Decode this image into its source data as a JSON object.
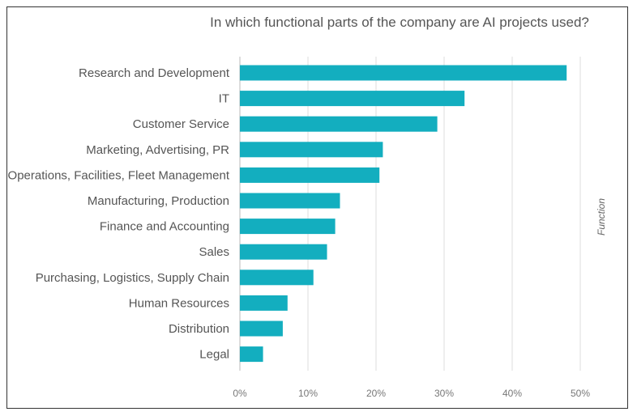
{
  "chart_data": {
    "type": "bar",
    "orientation": "horizontal",
    "title": "In which functional parts of the company are AI projects used?",
    "side_label": "Function",
    "categories": [
      "Research and Development",
      "IT",
      "Customer Service",
      "Marketing, Advertising, PR",
      "Operations, Facilities, Fleet Management",
      "Manufacturing, Production",
      "Finance and Accounting",
      "Sales",
      "Purchasing, Logistics, Supply Chain",
      "Human Resources",
      "Distribution",
      "Legal"
    ],
    "values": [
      48,
      33,
      29,
      21,
      20.5,
      14.7,
      14,
      12.8,
      10.8,
      7,
      6.3,
      3.4
    ],
    "xlim": [
      0,
      50
    ],
    "xticks": [
      0,
      10,
      20,
      30,
      40,
      50
    ],
    "xtick_labels": [
      "0%",
      "10%",
      "20%",
      "30%",
      "40%",
      "50%"
    ],
    "grid": true,
    "bar_color": "#13aebf",
    "grid_color": "#dddddd"
  }
}
